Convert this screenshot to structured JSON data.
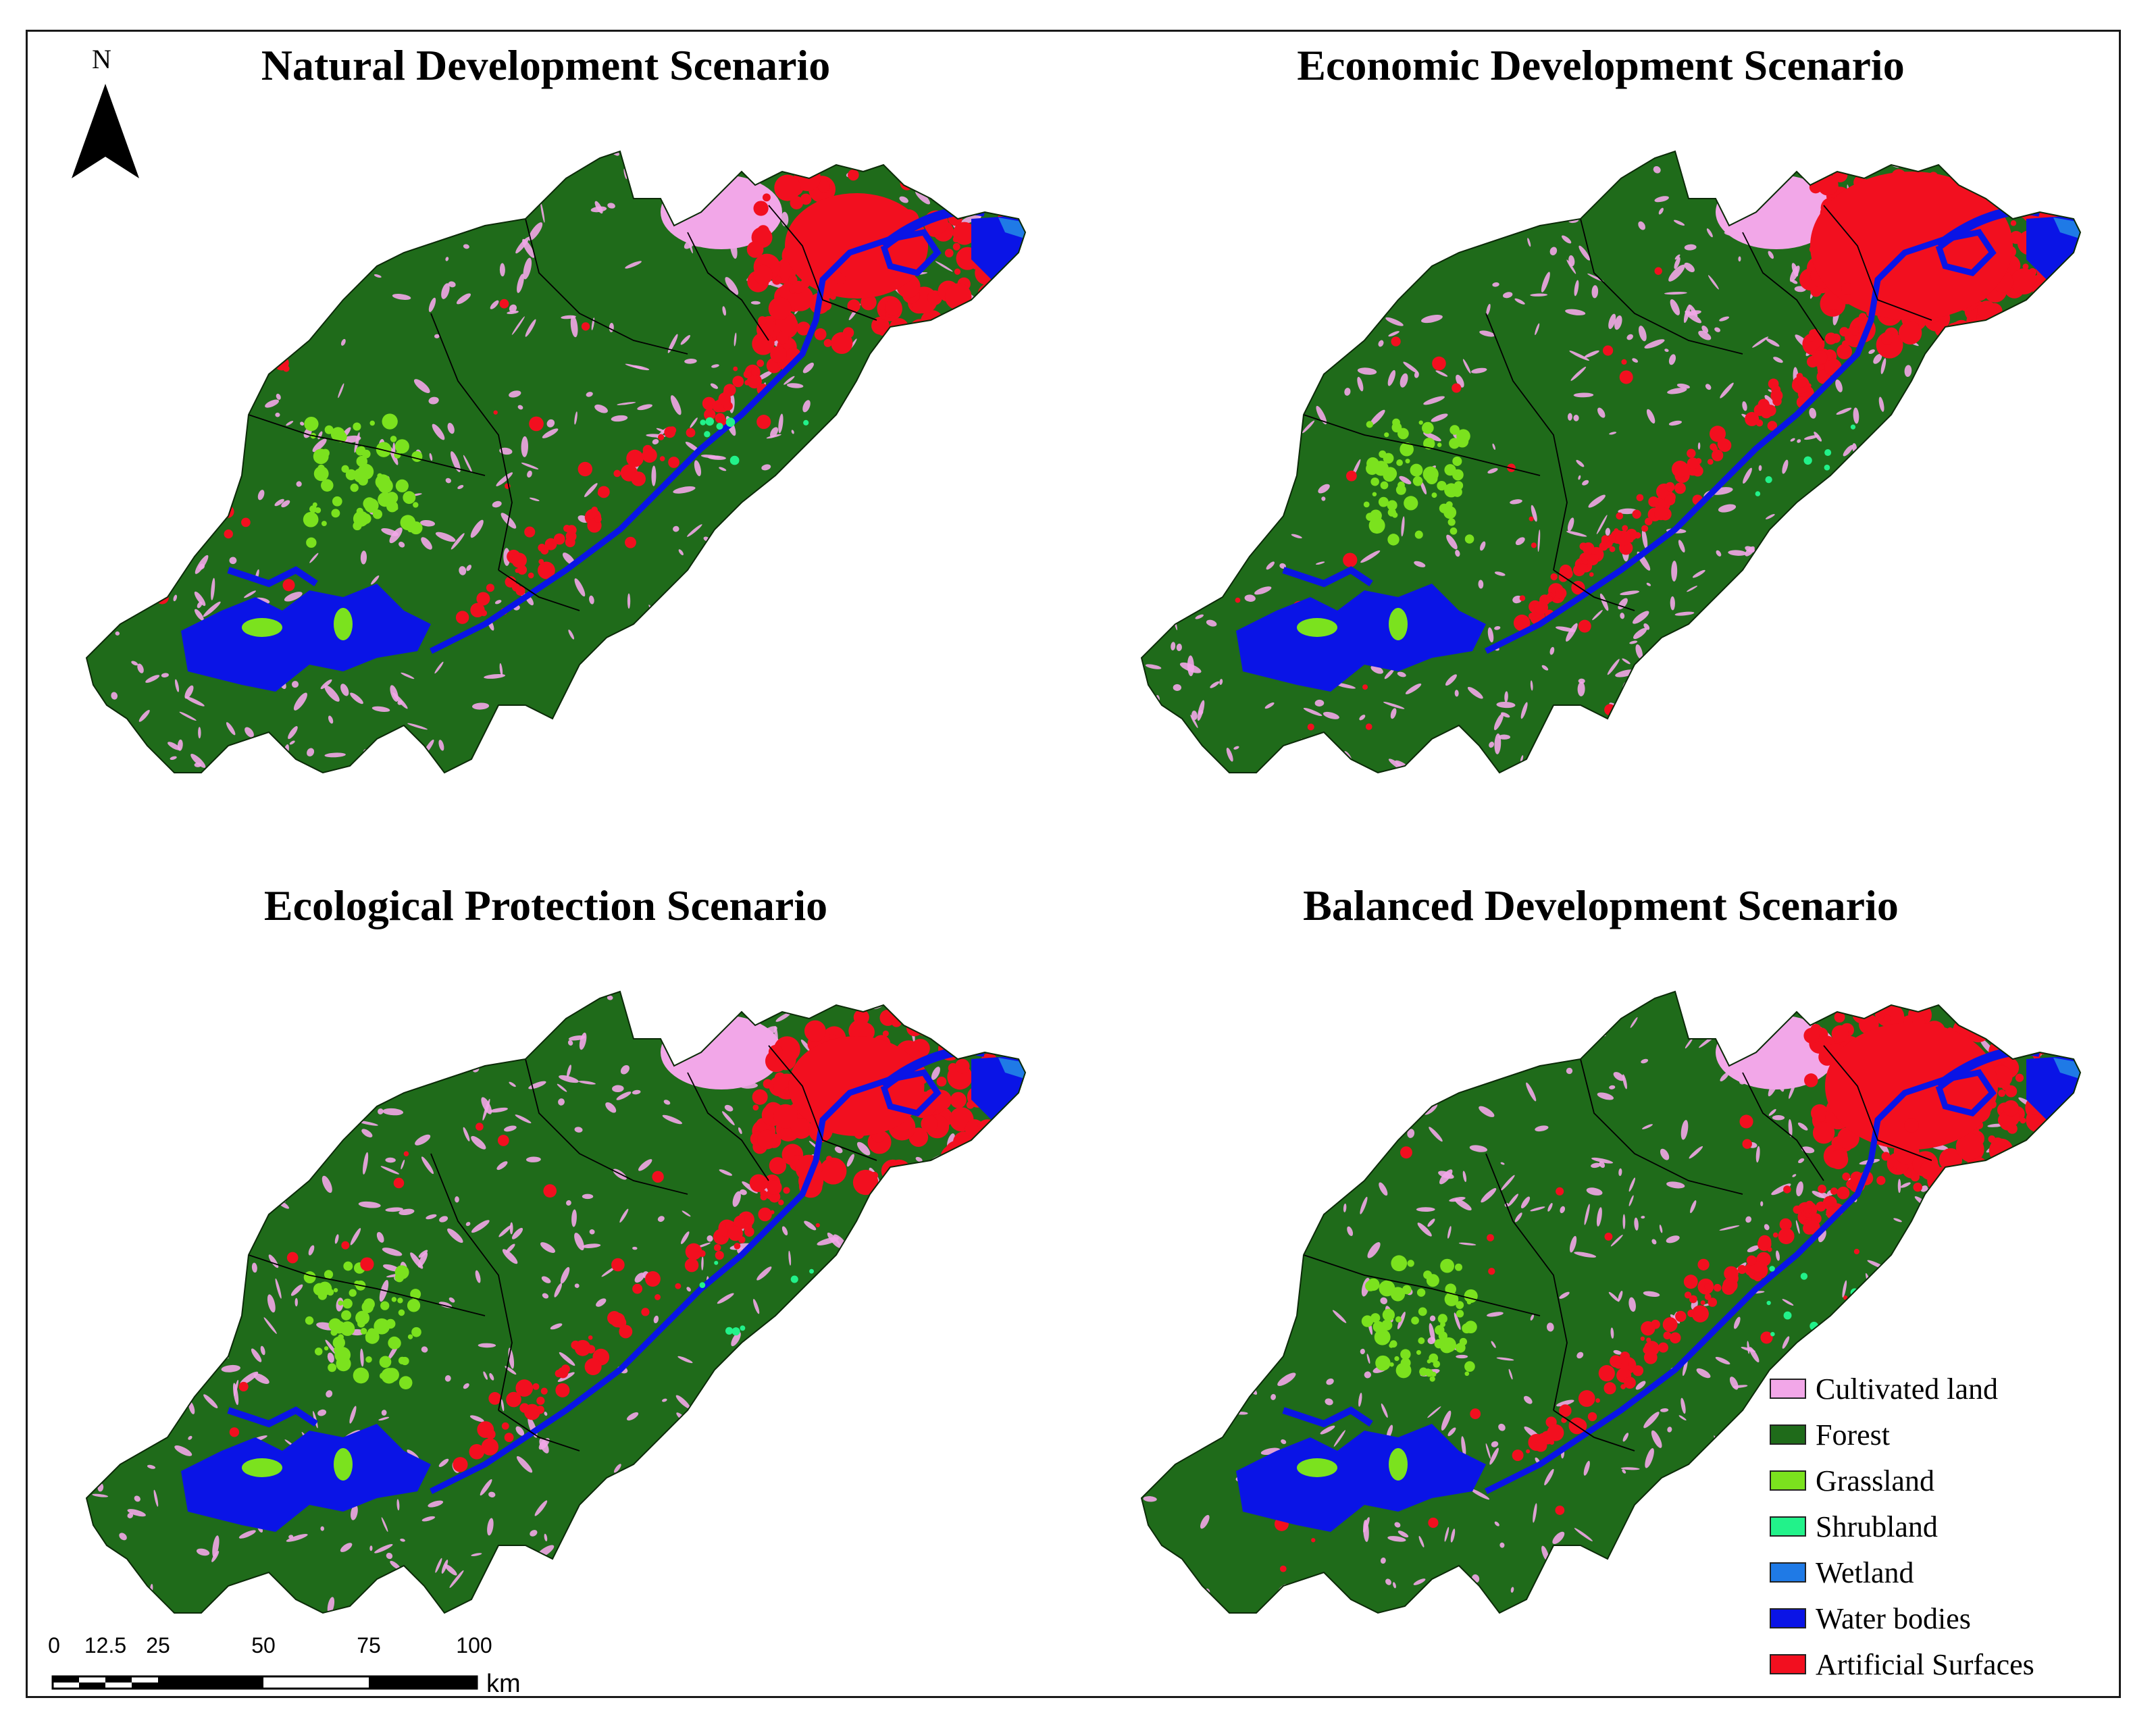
{
  "panels": [
    {
      "title": "Natural Development Scenario",
      "urban_intensity": 0.6
    },
    {
      "title": "Economic Development Scenario",
      "urban_intensity": 1.0
    },
    {
      "title": "Ecological Protection Scenario",
      "urban_intensity": 0.55
    },
    {
      "title": "Balanced Development Scenario",
      "urban_intensity": 0.8
    }
  ],
  "north_arrow": {
    "label": "N"
  },
  "scale_bar": {
    "ticks": [
      "0",
      "12.5",
      "25",
      "50",
      "75",
      "100"
    ],
    "unit": "km"
  },
  "legend": [
    {
      "label": "Cultivated land",
      "color": "#f2a7e8"
    },
    {
      "label": "Forest",
      "color": "#1f6b1a"
    },
    {
      "label": "Grassland",
      "color": "#7be21e"
    },
    {
      "label": "Shrubland",
      "color": "#22f28a"
    },
    {
      "label": "Wetland",
      "color": "#1f7ae6"
    },
    {
      "label": "Water bodies",
      "color": "#0a14e6"
    },
    {
      "label": "Artificial Surfaces",
      "color": "#f20f1f"
    }
  ]
}
